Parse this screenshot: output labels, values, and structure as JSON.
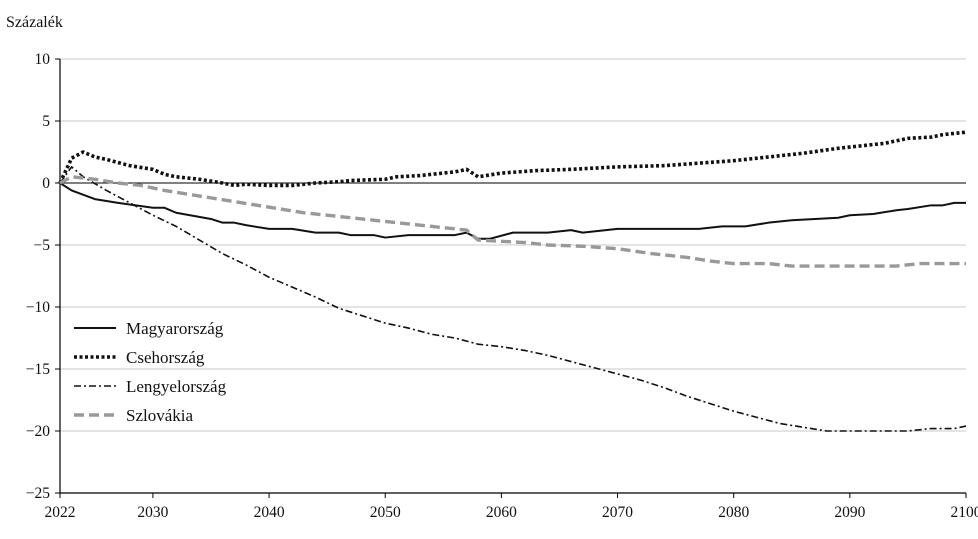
{
  "chart_data": {
    "type": "line",
    "title": "",
    "ylabel": "Százalék",
    "xlabel": "",
    "xlim": [
      2022,
      2100
    ],
    "ylim": [
      -25,
      10
    ],
    "x_ticks": [
      2022,
      2030,
      2040,
      2050,
      2060,
      2070,
      2080,
      2090,
      2100
    ],
    "y_ticks": [
      10,
      5,
      0,
      -5,
      -10,
      -15,
      -20,
      -25
    ],
    "grid": "horizontal",
    "legend_position": "lower-left",
    "series": [
      {
        "name": "Magyarország",
        "style": "solid",
        "color": "#111111",
        "points": [
          [
            2022,
            0
          ],
          [
            2023,
            -0.6
          ],
          [
            2025,
            -1.3
          ],
          [
            2027,
            -1.6
          ],
          [
            2030,
            -2.0
          ],
          [
            2031,
            -2.0
          ],
          [
            2032,
            -2.4
          ],
          [
            2035,
            -2.9
          ],
          [
            2036,
            -3.2
          ],
          [
            2037,
            -3.2
          ],
          [
            2038,
            -3.4
          ],
          [
            2040,
            -3.7
          ],
          [
            2042,
            -3.7
          ],
          [
            2044,
            -4.0
          ],
          [
            2046,
            -4.0
          ],
          [
            2047,
            -4.2
          ],
          [
            2049,
            -4.2
          ],
          [
            2050,
            -4.4
          ],
          [
            2052,
            -4.2
          ],
          [
            2056,
            -4.2
          ],
          [
            2057,
            -4.0
          ],
          [
            2058,
            -4.5
          ],
          [
            2059,
            -4.5
          ],
          [
            2061,
            -4.0
          ],
          [
            2064,
            -4.0
          ],
          [
            2066,
            -3.8
          ],
          [
            2067,
            -4.0
          ],
          [
            2070,
            -3.7
          ],
          [
            2077,
            -3.7
          ],
          [
            2079,
            -3.5
          ],
          [
            2081,
            -3.5
          ],
          [
            2083,
            -3.2
          ],
          [
            2085,
            -3.0
          ],
          [
            2087,
            -2.9
          ],
          [
            2089,
            -2.8
          ],
          [
            2090,
            -2.6
          ],
          [
            2092,
            -2.5
          ],
          [
            2094,
            -2.2
          ],
          [
            2095,
            -2.1
          ],
          [
            2097,
            -1.8
          ],
          [
            2098,
            -1.8
          ],
          [
            2099,
            -1.6
          ],
          [
            2100,
            -1.6
          ]
        ]
      },
      {
        "name": "Csehország",
        "style": "dotted",
        "color": "#111111",
        "points": [
          [
            2022,
            0
          ],
          [
            2023,
            2.0
          ],
          [
            2024,
            2.5
          ],
          [
            2025,
            2.1
          ],
          [
            2026,
            1.9
          ],
          [
            2028,
            1.4
          ],
          [
            2030,
            1.1
          ],
          [
            2031,
            0.7
          ],
          [
            2032,
            0.5
          ],
          [
            2034,
            0.3
          ],
          [
            2036,
            0.0
          ],
          [
            2037,
            -0.2
          ],
          [
            2038,
            -0.1
          ],
          [
            2040,
            -0.2
          ],
          [
            2042,
            -0.2
          ],
          [
            2044,
            0.0
          ],
          [
            2046,
            0.1
          ],
          [
            2047,
            0.2
          ],
          [
            2050,
            0.3
          ],
          [
            2051,
            0.5
          ],
          [
            2053,
            0.6
          ],
          [
            2056,
            0.9
          ],
          [
            2057,
            1.1
          ],
          [
            2058,
            0.5
          ],
          [
            2060,
            0.8
          ],
          [
            2063,
            1.0
          ],
          [
            2066,
            1.1
          ],
          [
            2070,
            1.3
          ],
          [
            2074,
            1.4
          ],
          [
            2077,
            1.6
          ],
          [
            2080,
            1.8
          ],
          [
            2083,
            2.1
          ],
          [
            2086,
            2.4
          ],
          [
            2089,
            2.8
          ],
          [
            2091,
            3.0
          ],
          [
            2093,
            3.2
          ],
          [
            2095,
            3.6
          ],
          [
            2097,
            3.7
          ],
          [
            2098,
            3.9
          ],
          [
            2100,
            4.1
          ]
        ]
      },
      {
        "name": "Lengyelország",
        "style": "dashdot",
        "color": "#111111",
        "points": [
          [
            2022,
            0
          ],
          [
            2023,
            1.3
          ],
          [
            2024,
            0.5
          ],
          [
            2026,
            -0.6
          ],
          [
            2028,
            -1.6
          ],
          [
            2030,
            -2.6
          ],
          [
            2032,
            -3.5
          ],
          [
            2034,
            -4.6
          ],
          [
            2036,
            -5.7
          ],
          [
            2038,
            -6.6
          ],
          [
            2040,
            -7.6
          ],
          [
            2042,
            -8.4
          ],
          [
            2044,
            -9.2
          ],
          [
            2046,
            -10.1
          ],
          [
            2048,
            -10.7
          ],
          [
            2050,
            -11.3
          ],
          [
            2052,
            -11.7
          ],
          [
            2054,
            -12.2
          ],
          [
            2056,
            -12.5
          ],
          [
            2058,
            -13.0
          ],
          [
            2060,
            -13.2
          ],
          [
            2062,
            -13.5
          ],
          [
            2064,
            -13.9
          ],
          [
            2066,
            -14.4
          ],
          [
            2068,
            -14.9
          ],
          [
            2070,
            -15.4
          ],
          [
            2072,
            -15.9
          ],
          [
            2074,
            -16.5
          ],
          [
            2076,
            -17.2
          ],
          [
            2078,
            -17.8
          ],
          [
            2080,
            -18.4
          ],
          [
            2082,
            -18.9
          ],
          [
            2084,
            -19.4
          ],
          [
            2086,
            -19.7
          ],
          [
            2088,
            -20.0
          ],
          [
            2090,
            -20.0
          ],
          [
            2092,
            -20.0
          ],
          [
            2095,
            -20.0
          ],
          [
            2097,
            -19.8
          ],
          [
            2099,
            -19.8
          ],
          [
            2100,
            -19.6
          ]
        ]
      },
      {
        "name": "Szlovákia",
        "style": "dashed",
        "color": "#999999",
        "points": [
          [
            2022,
            0
          ],
          [
            2023,
            0.5
          ],
          [
            2025,
            0.3
          ],
          [
            2027,
            0.0
          ],
          [
            2029,
            -0.2
          ],
          [
            2031,
            -0.6
          ],
          [
            2033,
            -0.9
          ],
          [
            2035,
            -1.2
          ],
          [
            2037,
            -1.5
          ],
          [
            2039,
            -1.8
          ],
          [
            2041,
            -2.1
          ],
          [
            2043,
            -2.4
          ],
          [
            2045,
            -2.6
          ],
          [
            2047,
            -2.8
          ],
          [
            2049,
            -3.0
          ],
          [
            2051,
            -3.2
          ],
          [
            2053,
            -3.4
          ],
          [
            2055,
            -3.6
          ],
          [
            2057,
            -3.8
          ],
          [
            2058,
            -4.6
          ],
          [
            2060,
            -4.7
          ],
          [
            2062,
            -4.8
          ],
          [
            2064,
            -5.0
          ],
          [
            2067,
            -5.1
          ],
          [
            2070,
            -5.3
          ],
          [
            2073,
            -5.7
          ],
          [
            2076,
            -6.0
          ],
          [
            2078,
            -6.3
          ],
          [
            2080,
            -6.5
          ],
          [
            2083,
            -6.5
          ],
          [
            2085,
            -6.7
          ],
          [
            2088,
            -6.7
          ],
          [
            2094,
            -6.7
          ],
          [
            2096,
            -6.5
          ],
          [
            2100,
            -6.5
          ]
        ]
      }
    ]
  }
}
